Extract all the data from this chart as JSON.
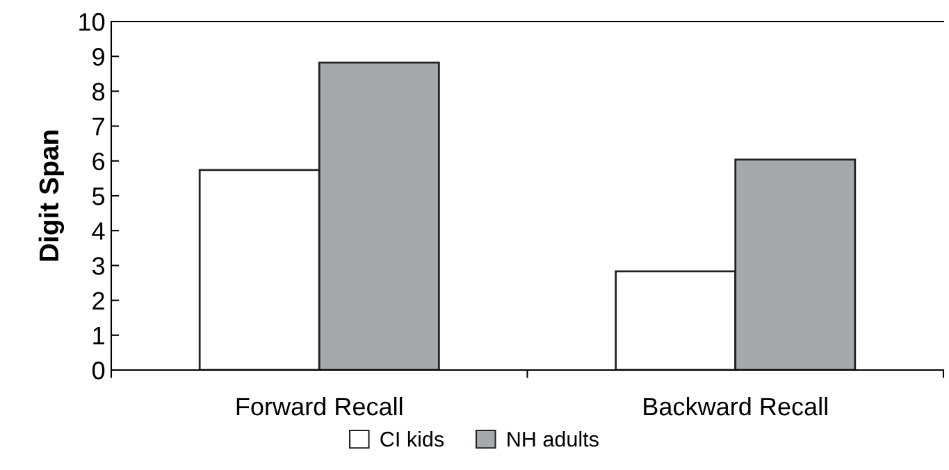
{
  "chart_data": {
    "type": "bar",
    "ylabel": "Digit Span",
    "categories": [
      "Forward Recall",
      "Backward Recall"
    ],
    "series": [
      {
        "name": "CI kids",
        "color": "#ffffff",
        "values": [
          5.74,
          2.83
        ]
      },
      {
        "name": "NH adults",
        "color": "#a7a8ab",
        "values": [
          8.82,
          6.04
        ]
      }
    ],
    "ylim": [
      0,
      10
    ],
    "yticks": [
      0,
      1,
      2,
      3,
      4,
      5,
      6,
      7,
      8,
      9,
      10
    ],
    "grid": false,
    "legend": "bottom"
  }
}
